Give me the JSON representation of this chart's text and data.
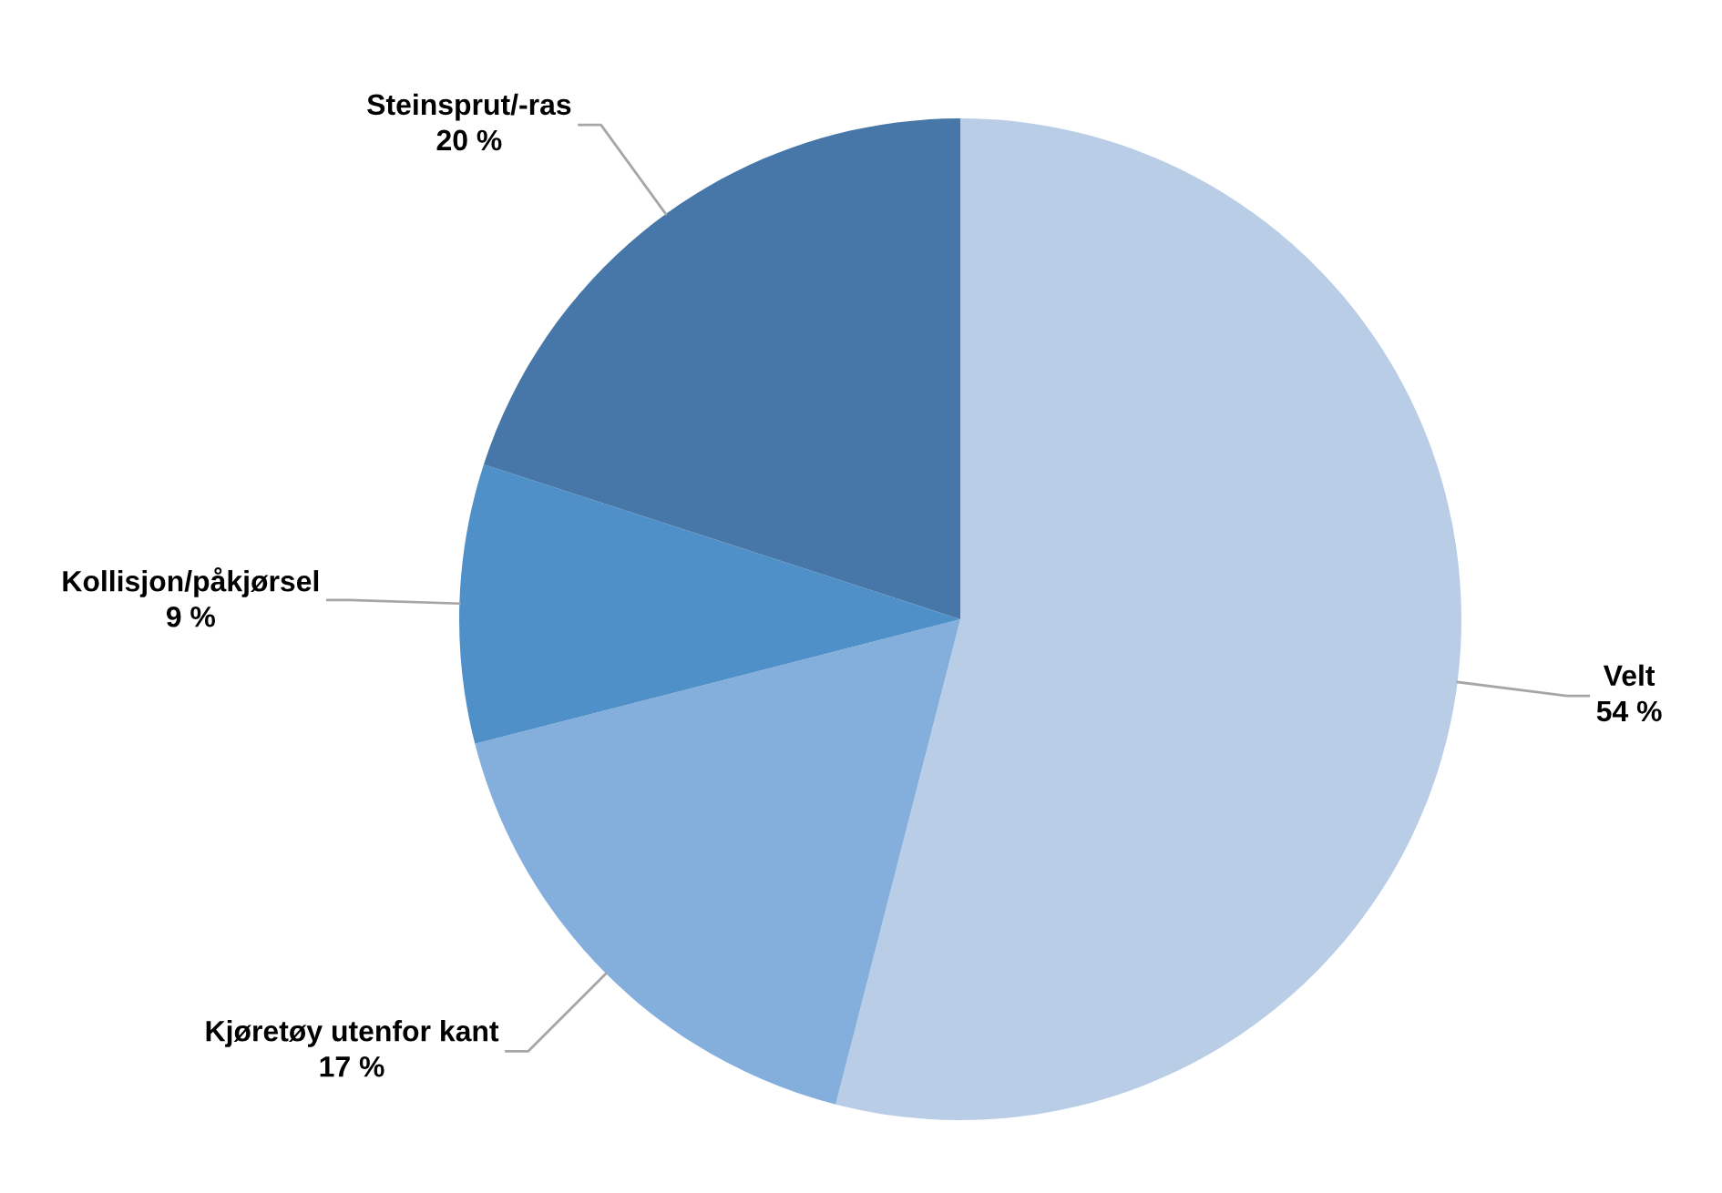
{
  "chart_data": {
    "type": "pie",
    "categories": [
      "Velt",
      "Kjøretøy utenfor kant",
      "Kollisjon/påkjørsel",
      "Steinsprut/-ras"
    ],
    "values": [
      54,
      17,
      9,
      20
    ],
    "value_labels": [
      "54 %",
      "17 %",
      "9 %",
      "20 %"
    ],
    "colors": [
      "#b9cde6",
      "#84aedb",
      "#5090c8",
      "#4677a8"
    ],
    "legend": false
  }
}
